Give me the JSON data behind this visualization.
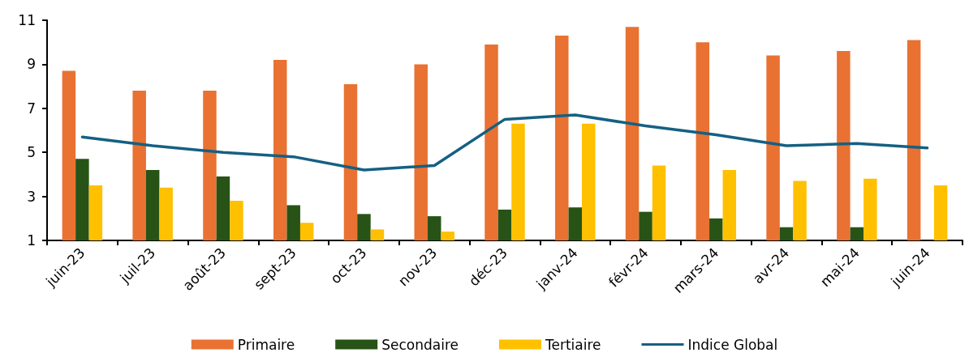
{
  "chart_data": {
    "type": "bar",
    "categories": [
      "juin-23",
      "juil-23",
      "août-23",
      "sept-23",
      "oct-23",
      "nov-23",
      "déc-23",
      "janv-24",
      "févr-24",
      "mars-24",
      "avr-24",
      "mai-24",
      "juin-24"
    ],
    "series": [
      {
        "name": "Primaire",
        "color": "#e97132",
        "values": [
          8.7,
          7.8,
          7.8,
          9.2,
          8.1,
          9.0,
          9.9,
          10.3,
          10.7,
          10.0,
          9.4,
          9.6,
          10.1
        ]
      },
      {
        "name": "Secondaire",
        "color": "#275317",
        "values": [
          4.7,
          4.2,
          3.9,
          2.6,
          2.2,
          2.1,
          2.4,
          2.5,
          2.3,
          2.0,
          1.6,
          1.6,
          null
        ]
      },
      {
        "name": "Tertiaire",
        "color": "#ffc000",
        "values": [
          3.5,
          3.4,
          2.8,
          1.8,
          1.5,
          1.4,
          6.3,
          6.3,
          4.4,
          4.2,
          3.7,
          3.8,
          3.5
        ]
      },
      {
        "name": "Indice Global",
        "type": "line",
        "color": "#156082",
        "values": [
          5.7,
          5.3,
          5.0,
          4.8,
          4.2,
          4.4,
          6.5,
          6.7,
          6.2,
          5.8,
          5.3,
          5.4,
          5.2
        ]
      }
    ],
    "ylim": [
      1,
      11
    ],
    "yticks": [
      1,
      3,
      5,
      7,
      9,
      11
    ],
    "grid": false,
    "legend": "bottom",
    "marker": "none"
  }
}
